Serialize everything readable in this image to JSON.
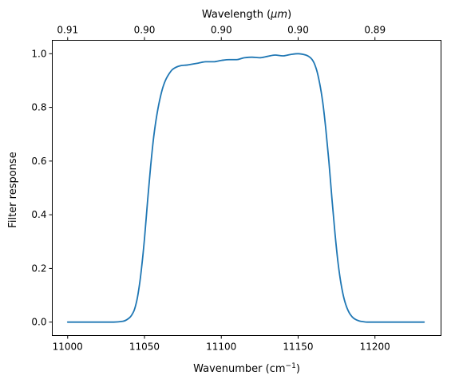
{
  "chart_data": {
    "type": "line",
    "xlabel": "Wavenumber (cm",
    "xlabel_sup": "−1",
    "xlabel_close": ")",
    "ylabel": "Filter response",
    "top_xlabel": "Wavelength (",
    "top_xlabel_unit": "μm",
    "top_xlabel_close": ")",
    "xlim": [
      10990,
      11243
    ],
    "ylim": [
      -0.05,
      1.05
    ],
    "x_ticks": [
      11000,
      11050,
      11100,
      11150,
      11200
    ],
    "y_ticks": [
      0.0,
      0.2,
      0.4,
      0.6,
      0.8,
      1.0
    ],
    "x_tick_labels": [
      "11000",
      "11050",
      "11100",
      "11150",
      "11200"
    ],
    "y_tick_labels": [
      "0.0",
      "0.2",
      "0.4",
      "0.6",
      "0.8",
      "1.0"
    ],
    "top_ticks": [
      {
        "at": 11000,
        "label": "0.91"
      },
      {
        "at": 11050,
        "label": "0.90"
      },
      {
        "at": 11100,
        "label": "0.90"
      },
      {
        "at": 11150,
        "label": "0.90"
      },
      {
        "at": 11200,
        "label": "0.89"
      }
    ],
    "grid": false,
    "series": [
      {
        "color": "#1f77b4",
        "x": [
          11000,
          11030,
          11036,
          11040,
          11043,
          11045,
          11047,
          11049,
          11050,
          11052,
          11054,
          11056,
          11058,
          11060,
          11062,
          11064,
          11066,
          11068,
          11070,
          11072,
          11074,
          11076,
          11078,
          11080,
          11085,
          11090,
          11095,
          11100,
          11105,
          11110,
          11115,
          11120,
          11125,
          11130,
          11135,
          11140,
          11145,
          11150,
          11155,
          11158,
          11160,
          11162,
          11164,
          11166,
          11168,
          11170,
          11172,
          11174,
          11176,
          11178,
          11180,
          11182,
          11184,
          11186,
          11188,
          11190,
          11192,
          11195,
          11200,
          11210,
          11232
        ],
        "y": [
          0.0,
          0.0,
          0.003,
          0.015,
          0.04,
          0.08,
          0.15,
          0.25,
          0.31,
          0.45,
          0.58,
          0.69,
          0.77,
          0.83,
          0.875,
          0.905,
          0.925,
          0.94,
          0.948,
          0.953,
          0.956,
          0.957,
          0.958,
          0.96,
          0.965,
          0.97,
          0.97,
          0.975,
          0.978,
          0.978,
          0.985,
          0.987,
          0.985,
          0.99,
          0.995,
          0.992,
          0.997,
          1.0,
          0.995,
          0.985,
          0.97,
          0.94,
          0.89,
          0.82,
          0.72,
          0.6,
          0.46,
          0.33,
          0.22,
          0.14,
          0.085,
          0.05,
          0.028,
          0.015,
          0.008,
          0.004,
          0.002,
          0.0,
          0.0,
          0.0,
          0.0
        ]
      }
    ]
  }
}
